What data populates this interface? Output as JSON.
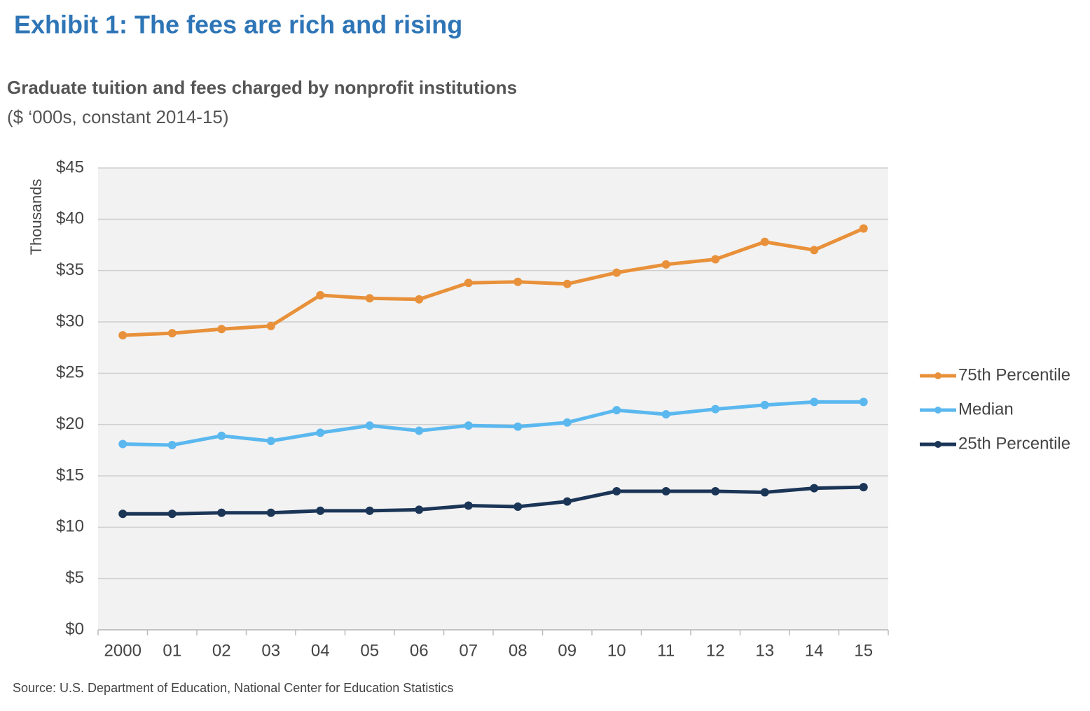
{
  "chart_data": {
    "type": "line",
    "title": "Exhibit 1: The fees are rich and rising",
    "subtitle": "Graduate tuition and fees charged by nonprofit institutions",
    "units": "($ ‘000s, constant 2014-15)",
    "y_label": "Thousands",
    "source": "Source: U.S. Department of Education, National Center for Education Statistics",
    "categories": [
      "2000",
      "01",
      "02",
      "03",
      "04",
      "05",
      "06",
      "07",
      "08",
      "09",
      "10",
      "11",
      "12",
      "13",
      "14",
      "15"
    ],
    "series": [
      {
        "name": "75th Percentile",
        "color": "#e8913a",
        "values": [
          28.7,
          28.9,
          29.3,
          29.6,
          32.6,
          32.3,
          32.2,
          33.8,
          33.9,
          33.7,
          34.8,
          35.6,
          36.1,
          37.8,
          37.0,
          39.1
        ]
      },
      {
        "name": "Median",
        "color": "#5bb8ef",
        "values": [
          18.1,
          18.0,
          18.9,
          18.4,
          19.2,
          19.9,
          19.4,
          19.9,
          19.8,
          20.2,
          21.4,
          21.0,
          21.5,
          21.9,
          22.2,
          22.2
        ]
      },
      {
        "name": "25th Percentile",
        "color": "#1b3557",
        "values": [
          11.3,
          11.3,
          11.4,
          11.4,
          11.6,
          11.6,
          11.7,
          12.1,
          12.0,
          12.5,
          13.5,
          13.5,
          13.5,
          13.4,
          13.8,
          13.9
        ]
      }
    ],
    "ylim": [
      0,
      45
    ],
    "yticks": [
      {
        "value": 0,
        "label": "$0"
      },
      {
        "value": 5,
        "label": "$5"
      },
      {
        "value": 10,
        "label": "$10"
      },
      {
        "value": 15,
        "label": "$15"
      },
      {
        "value": 20,
        "label": "$20"
      },
      {
        "value": 25,
        "label": "$25"
      },
      {
        "value": 30,
        "label": "$30"
      },
      {
        "value": 35,
        "label": "$35"
      },
      {
        "value": 40,
        "label": "$40"
      },
      {
        "value": 45,
        "label": "$45"
      }
    ],
    "grid": true,
    "legend": "right"
  }
}
